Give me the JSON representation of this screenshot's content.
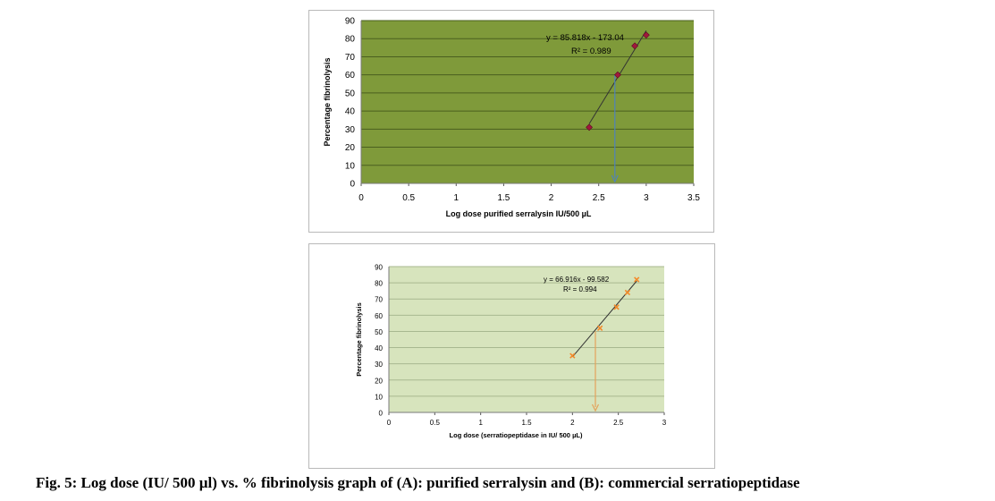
{
  "caption": "Fig. 5: Log dose (IU/ 500 µl) vs. % fibrinolysis graph of (A): purified serralysin and (B): commercial serratiopeptidase",
  "colors": {
    "panel_a_plot_bg": "#7f9a3a",
    "panel_b_plot_bg": "#d7e4bd",
    "panel_a_marker": "#a0183c",
    "panel_b_marker": "#f28a2a",
    "panel_a_drop_arrow": "#4f81bd",
    "panel_b_drop_arrow": "#e4a25a",
    "trendline": "#333333"
  },
  "chart_data": [
    {
      "type": "scatter",
      "title": "",
      "xlabel": "Log dose  purified serralysin  IU/500 µL",
      "ylabel": "Percentage fibrinolysis",
      "xlim": [
        0,
        3.5
      ],
      "ylim": [
        0,
        90
      ],
      "x_ticks": [
        "0",
        "0.5",
        "1",
        "1.5",
        "2",
        "2.5",
        "3",
        "3.5"
      ],
      "y_ticks": [
        "0",
        "10",
        "20",
        "30",
        "40",
        "50",
        "60",
        "70",
        "80",
        "90"
      ],
      "grid": "horizontal",
      "marker": "diamond",
      "x": [
        2.4,
        2.7,
        2.88,
        3.0
      ],
      "y": [
        31,
        60,
        76,
        82
      ],
      "trendline": {
        "slope": 85.818,
        "intercept": -173.04,
        "x_range": [
          2.4,
          3.0
        ]
      },
      "equation": "y = 85.818x - 173.04",
      "r_squared": "R² = 0.989",
      "drop_arrow": {
        "x": 2.67,
        "from_y": 60,
        "to_y": 0
      }
    },
    {
      "type": "scatter",
      "title": "",
      "xlabel": "Log dose (serratiopeptidase in IU/ 500  µL)",
      "ylabel": "Percentage fibrinolysis",
      "xlim": [
        0,
        3
      ],
      "ylim": [
        0,
        90
      ],
      "x_ticks": [
        "0",
        "0.5",
        "1",
        "1.5",
        "2",
        "2.5",
        "3"
      ],
      "y_ticks": [
        "0",
        "10",
        "20",
        "30",
        "40",
        "50",
        "60",
        "70",
        "80",
        "90"
      ],
      "grid": "horizontal",
      "marker": "x",
      "x": [
        2.0,
        2.3,
        2.48,
        2.6,
        2.7
      ],
      "y": [
        35,
        52,
        65,
        74,
        82
      ],
      "trendline": {
        "slope": 66.916,
        "intercept": -99.582,
        "x_range": [
          2.0,
          2.7
        ]
      },
      "equation": "y = 66.916x - 99.582",
      "r_squared": "R² = 0.994",
      "drop_arrow": {
        "x": 2.25,
        "from_y": 50,
        "to_y": 0
      }
    }
  ]
}
